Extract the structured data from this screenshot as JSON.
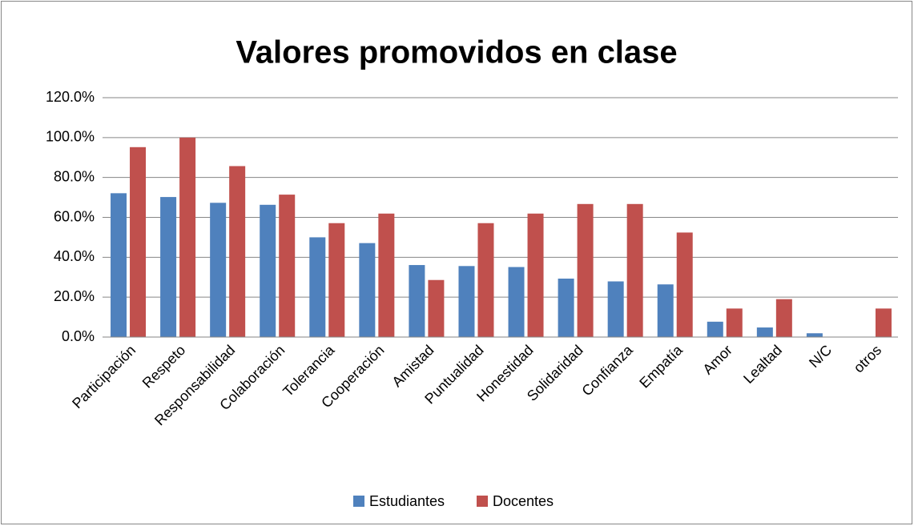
{
  "chart_data": {
    "type": "bar",
    "title": "Valores promovidos en clase",
    "categories": [
      "Participación",
      "Respeto",
      "Responsabilidad",
      "Colaboración",
      "Tolerancia",
      "Cooperación",
      "Amistad",
      "Puntualidad",
      "Honestidad",
      "Solidaridad",
      "Confianza",
      "Empatía",
      "Amor",
      "Lealtad",
      "N/C",
      "otros"
    ],
    "series": [
      {
        "name": "Estudiantes",
        "color": "#4f81bd",
        "values": [
          72.1,
          70.2,
          67.3,
          66.3,
          50.0,
          47.1,
          36.1,
          35.6,
          35.1,
          29.3,
          27.9,
          26.4,
          7.7,
          4.8,
          1.9,
          0
        ]
      },
      {
        "name": "Docentes",
        "color": "#c0504d",
        "values": [
          95.2,
          100,
          85.7,
          71.4,
          57.1,
          61.9,
          28.6,
          57.1,
          61.9,
          66.7,
          66.7,
          52.4,
          14.3,
          19.0,
          0,
          14.3
        ]
      }
    ],
    "ylim": [
      0,
      120
    ],
    "yticks": [
      {
        "value": 0,
        "label": "0.0%"
      },
      {
        "value": 20,
        "label": "20.0%"
      },
      {
        "value": 40,
        "label": "40.0%"
      },
      {
        "value": 60,
        "label": "60.0%"
      },
      {
        "value": 80,
        "label": "80.0%"
      },
      {
        "value": 100,
        "label": "100.0%"
      },
      {
        "value": 120,
        "label": "120.0%"
      }
    ],
    "grid": true,
    "legend": "bottom"
  }
}
